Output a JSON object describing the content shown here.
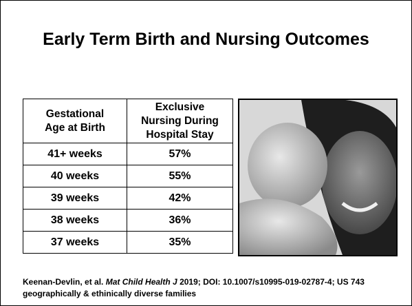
{
  "title": "Early Term Birth and Nursing Outcomes",
  "table": {
    "header": [
      "Gestational\nAge at Birth",
      "Exclusive\nNursing During\nHospital Stay"
    ],
    "rows": [
      [
        "41+ weeks",
        "57%"
      ],
      [
        "40 weeks",
        "55%"
      ],
      [
        "39 weeks",
        "42%"
      ],
      [
        "38 weeks",
        "36%"
      ],
      [
        "37 weeks",
        "35%"
      ]
    ]
  },
  "citation": {
    "authors": "Keenan-Devlin, et al.",
    "journal": "Mat Child Health J",
    "details": "2019; DOI: 10.1007/s10995-019-02787-4; US 743 geographically & ethinically diverse families"
  }
}
